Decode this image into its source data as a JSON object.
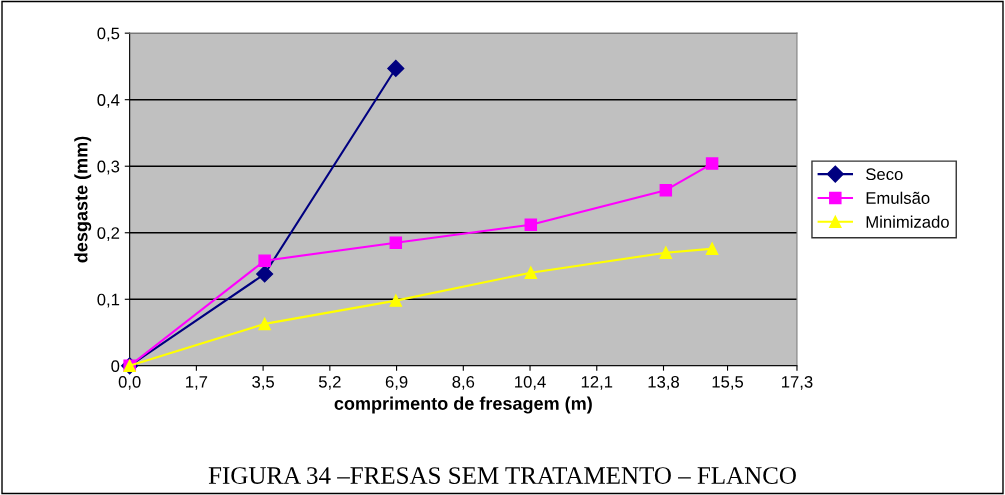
{
  "chart_data": {
    "type": "line",
    "xlabel": "comprimento de fresagem (m)",
    "ylabel": "desgaste (mm)",
    "annotations": [
      "FIGURA 34 –FRESAS SEM TRATAMENTO – FLANCO"
    ],
    "xlim": [
      0,
      17.3
    ],
    "ylim": [
      0,
      0.5
    ],
    "xticks": [
      {
        "value": 0,
        "label": "0,0"
      },
      {
        "value": 1.73,
        "label": "1,7"
      },
      {
        "value": 3.46,
        "label": "3,5"
      },
      {
        "value": 5.19,
        "label": "5,2"
      },
      {
        "value": 6.92,
        "label": "6,9"
      },
      {
        "value": 8.65,
        "label": "8,6"
      },
      {
        "value": 10.38,
        "label": "10,4"
      },
      {
        "value": 12.11,
        "label": "12,1"
      },
      {
        "value": 13.84,
        "label": "13,8"
      },
      {
        "value": 15.5,
        "label": "15,5"
      },
      {
        "value": 17.3,
        "label": "17,3"
      }
    ],
    "yticks": [
      0,
      {
        "value": 0.1,
        "label": "0,1"
      },
      {
        "value": 0.2,
        "label": "0,2"
      },
      {
        "value": 0.3,
        "label": "0,3"
      },
      {
        "value": 0.4,
        "label": "0,4"
      },
      {
        "value": 0.5,
        "label": "0,5"
      }
    ],
    "grid": "y",
    "legend": "right",
    "series": [
      {
        "name": "Seco",
        "color": "#000080",
        "marker": "diamond",
        "x": [
          0,
          3.5,
          6.9
        ],
        "values": [
          0,
          0.138,
          0.447
        ]
      },
      {
        "name": "Emulsão",
        "color": "#ff00ff",
        "marker": "square",
        "x": [
          0,
          3.5,
          6.9,
          10.4,
          13.9,
          15.1
        ],
        "values": [
          0,
          0.158,
          0.185,
          0.212,
          0.264,
          0.304
        ]
      },
      {
        "name": "Minimizado",
        "color": "#ffff00",
        "marker": "triangle",
        "x": [
          0,
          3.5,
          6.9,
          10.4,
          13.9,
          15.1
        ],
        "values": [
          0,
          0.063,
          0.098,
          0.14,
          0.17,
          0.176
        ]
      }
    ]
  }
}
